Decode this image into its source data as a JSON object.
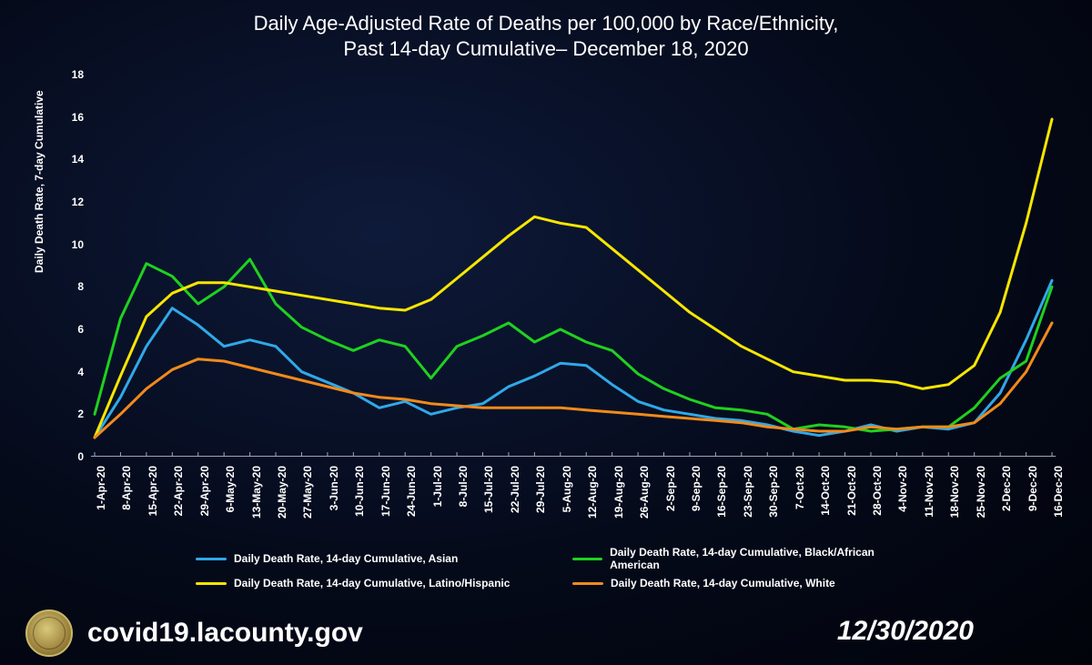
{
  "title_line1": "Daily Age-Adjusted Rate of Deaths per 100,000 by Race/Ethnicity,",
  "title_line2": "Past 14-day Cumulative– December 18, 2020",
  "footer_url": "covid19.lacounty.gov",
  "footer_date": "12/30/2020",
  "chart": {
    "type": "line",
    "background": "transparent",
    "line_width": 3,
    "title_fontsize": 22,
    "ylabel": "Daily Death Rate, 7-day Cumulative",
    "ylabel_fontsize": 12,
    "ylim": [
      0,
      18
    ],
    "yticks": [
      0,
      2,
      4,
      6,
      8,
      10,
      12,
      14,
      16,
      18
    ],
    "x_categories": [
      "1-Apr-20",
      "8-Apr-20",
      "15-Apr-20",
      "22-Apr-20",
      "29-Apr-20",
      "6-May-20",
      "13-May-20",
      "20-May-20",
      "27-May-20",
      "3-Jun-20",
      "10-Jun-20",
      "17-Jun-20",
      "24-Jun-20",
      "1-Jul-20",
      "8-Jul-20",
      "15-Jul-20",
      "22-Jul-20",
      "29-Jul-20",
      "5-Aug-20",
      "12-Aug-20",
      "19-Aug-20",
      "26-Aug-20",
      "2-Sep-20",
      "9-Sep-20",
      "16-Sep-20",
      "23-Sep-20",
      "30-Sep-20",
      "7-Oct-20",
      "14-Oct-20",
      "21-Oct-20",
      "28-Oct-20",
      "4-Nov-20",
      "11-Nov-20",
      "18-Nov-20",
      "25-Nov-20",
      "2-Dec-20",
      "9-Dec-20",
      "16-Dec-20"
    ],
    "series": [
      {
        "name": "Daily Death Rate, 14-day Cumulative, Asian",
        "color": "#2fa9e8",
        "data": [
          0.9,
          2.8,
          5.2,
          7.0,
          6.2,
          5.2,
          5.5,
          5.2,
          4.0,
          3.5,
          3.0,
          2.3,
          2.6,
          2.0,
          2.3,
          2.5,
          3.3,
          3.8,
          4.4,
          4.3,
          3.4,
          2.6,
          2.2,
          2.0,
          1.8,
          1.7,
          1.5,
          1.2,
          1.0,
          1.2,
          1.5,
          1.2,
          1.4,
          1.3,
          1.6,
          3.0,
          5.5,
          8.3
        ]
      },
      {
        "name": "Daily Death Rate, 14-day Cumulative, Black/African American",
        "color": "#1fd11f",
        "data": [
          2.0,
          6.5,
          9.1,
          8.5,
          7.2,
          8.0,
          9.3,
          7.2,
          6.1,
          5.5,
          5.0,
          5.5,
          5.2,
          3.7,
          5.2,
          5.7,
          6.3,
          5.4,
          6.0,
          5.4,
          5.0,
          3.9,
          3.2,
          2.7,
          2.3,
          2.2,
          2.0,
          1.3,
          1.5,
          1.4,
          1.2,
          1.3,
          1.4,
          1.4,
          2.3,
          3.7,
          4.5,
          8.0
        ]
      },
      {
        "name": "Daily Death Rate, 14-day Cumulative, Latino/Hispanic",
        "color": "#f7e600",
        "data": [
          0.9,
          3.8,
          6.6,
          7.7,
          8.2,
          8.2,
          8.0,
          7.8,
          7.6,
          7.4,
          7.2,
          7.0,
          6.9,
          7.4,
          8.4,
          9.4,
          10.4,
          11.3,
          11.0,
          10.8,
          9.8,
          8.8,
          7.8,
          6.8,
          6.0,
          5.2,
          4.6,
          4.0,
          3.8,
          3.6,
          3.6,
          3.5,
          3.2,
          3.4,
          4.3,
          6.8,
          11.0,
          15.9
        ]
      },
      {
        "name": "Daily Death Rate, 14-day Cumulative, White",
        "color": "#f28a1b",
        "data": [
          0.9,
          2.0,
          3.2,
          4.1,
          4.6,
          4.5,
          4.2,
          3.9,
          3.6,
          3.3,
          3.0,
          2.8,
          2.7,
          2.5,
          2.4,
          2.3,
          2.3,
          2.3,
          2.3,
          2.2,
          2.1,
          2.0,
          1.9,
          1.8,
          1.7,
          1.6,
          1.4,
          1.3,
          1.2,
          1.2,
          1.4,
          1.3,
          1.4,
          1.4,
          1.6,
          2.5,
          4.0,
          6.3
        ]
      }
    ]
  }
}
